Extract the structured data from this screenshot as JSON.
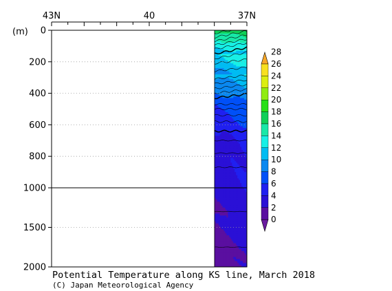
{
  "chart_data": {
    "type": "heatmap",
    "title": "Potential Temperature along KS line, March 2018",
    "credit": "(C) Japan Meteorological Agency",
    "ylabel": "(m)",
    "x_axis": {
      "position": "top",
      "tick_labels": [
        "43N",
        "40",
        "37N"
      ],
      "tick_values": [
        43,
        40,
        37
      ],
      "range": [
        43,
        37
      ]
    },
    "y_axis": {
      "tick_labels": [
        "0",
        "200",
        "400",
        "600",
        "800",
        "1000",
        "1500",
        "2000"
      ],
      "upper_section": {
        "range": [
          0,
          1000
        ],
        "ticks": [
          0,
          200,
          400,
          600,
          800,
          1000
        ]
      },
      "lower_section": {
        "range": [
          1000,
          2000
        ],
        "ticks": [
          1000,
          1500,
          2000
        ]
      },
      "gridlines": "dotted"
    },
    "data_extent": {
      "lat_from": 38.0,
      "lat_to": 37.0
    },
    "colorbar": {
      "position": "right",
      "levels": [
        0,
        2,
        4,
        6,
        8,
        10,
        12,
        14,
        16,
        18,
        20,
        22,
        24,
        26,
        28
      ],
      "labels": [
        "0",
        "2",
        "4",
        "6",
        "8",
        "10",
        "12",
        "14",
        "16",
        "18",
        "20",
        "22",
        "24",
        "26",
        "28"
      ],
      "colors": [
        "#5a0fa0",
        "#2a10d6",
        "#2020f0",
        "#0050f8",
        "#0a88f0",
        "#00bcf2",
        "#18f0e6",
        "#18e8a8",
        "#10d058",
        "#28e018",
        "#90ec10",
        "#dcee10",
        "#f8e020"
      ],
      "under_color": "#6a1aa0",
      "over_color": "#f8a828"
    },
    "sections": [
      {
        "depth_range": [
          0,
          150
        ],
        "temp_range": [
          11,
          17
        ]
      },
      {
        "depth_range": [
          150,
          280
        ],
        "temp_range": [
          10,
          13
        ]
      },
      {
        "depth_range": [
          280,
          520
        ],
        "temp_range": [
          6,
          11
        ]
      },
      {
        "depth_range": [
          520,
          700
        ],
        "temp_range": [
          4,
          6
        ]
      },
      {
        "depth_range": [
          700,
          1000
        ],
        "temp_range": [
          3,
          4
        ]
      },
      {
        "depth_range": [
          1000,
          1750
        ],
        "temp_range": [
          2,
          3
        ]
      },
      {
        "depth_range": [
          1750,
          2000
        ],
        "temp_range": [
          1,
          2
        ]
      }
    ]
  }
}
